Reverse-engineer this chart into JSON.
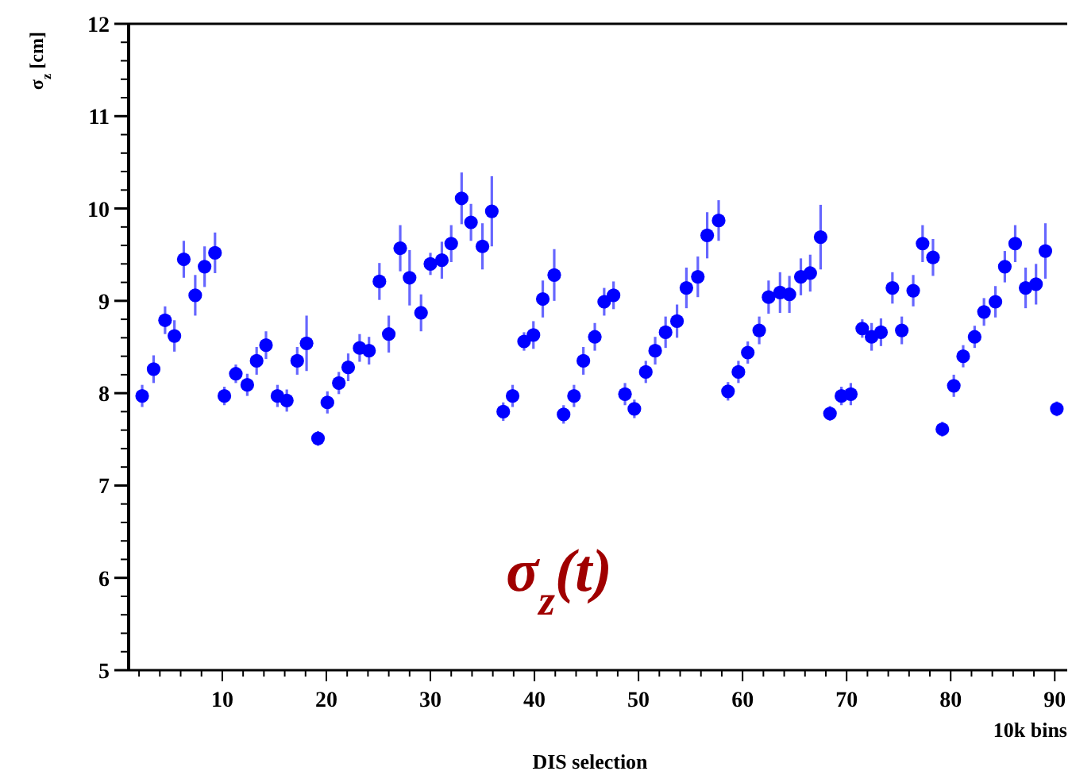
{
  "chart_data": {
    "type": "scatter",
    "xlabel": "DIS selection",
    "ylabel": "σ$_{z}$ [cm]",
    "annotations": [
      "σ$_{z}$(t)",
      "10k bins"
    ],
    "xlim": [
      1,
      91.2
    ],
    "xticks": [
      {
        "value": 2,
        "label": null
      },
      {
        "value": 4,
        "label": null
      },
      {
        "value": 6,
        "label": null
      },
      {
        "value": 8,
        "label": null
      },
      10,
      {
        "value": 12,
        "label": null
      },
      {
        "value": 14,
        "label": null
      },
      {
        "value": 16,
        "label": null
      },
      {
        "value": 18,
        "label": null
      },
      20,
      {
        "value": 22,
        "label": null
      },
      {
        "value": 24,
        "label": null
      },
      {
        "value": 26,
        "label": null
      },
      {
        "value": 28,
        "label": null
      },
      30,
      {
        "value": 32,
        "label": null
      },
      {
        "value": 34,
        "label": null
      },
      {
        "value": 36,
        "label": null
      },
      {
        "value": 38,
        "label": null
      },
      40,
      {
        "value": 42,
        "label": null
      },
      {
        "value": 44,
        "label": null
      },
      {
        "value": 46,
        "label": null
      },
      {
        "value": 48,
        "label": null
      },
      50,
      {
        "value": 52,
        "label": null
      },
      {
        "value": 54,
        "label": null
      },
      {
        "value": 56,
        "label": null
      },
      {
        "value": 58,
        "label": null
      },
      60,
      {
        "value": 62,
        "label": null
      },
      {
        "value": 64,
        "label": null
      },
      {
        "value": 66,
        "label": null
      },
      {
        "value": 68,
        "label": null
      },
      70,
      {
        "value": 72,
        "label": null
      },
      {
        "value": 74,
        "label": null
      },
      {
        "value": 76,
        "label": null
      },
      {
        "value": 78,
        "label": null
      },
      80,
      {
        "value": 82,
        "label": null
      },
      {
        "value": 84,
        "label": null
      },
      {
        "value": 86,
        "label": null
      },
      {
        "value": 88,
        "label": null
      },
      90
    ],
    "ylim": [
      5,
      12
    ],
    "yticks": [
      5,
      {
        "value": 5.2,
        "label": null
      },
      {
        "value": 5.4,
        "label": null
      },
      {
        "value": 5.6,
        "label": null
      },
      {
        "value": 5.8,
        "label": null
      },
      6,
      {
        "value": 6.2,
        "label": null
      },
      {
        "value": 6.4,
        "label": null
      },
      {
        "value": 6.6,
        "label": null
      },
      {
        "value": 6.8,
        "label": null
      },
      7,
      {
        "value": 7.2,
        "label": null
      },
      {
        "value": 7.4,
        "label": null
      },
      {
        "value": 7.6,
        "label": null
      },
      {
        "value": 7.8,
        "label": null
      },
      8,
      {
        "value": 8.2,
        "label": null
      },
      {
        "value": 8.4,
        "label": null
      },
      {
        "value": 8.6,
        "label": null
      },
      {
        "value": 8.8,
        "label": null
      },
      9,
      {
        "value": 9.2,
        "label": null
      },
      {
        "value": 9.4,
        "label": null
      },
      {
        "value": 9.6,
        "label": null
      },
      {
        "value": 9.8,
        "label": null
      },
      10,
      {
        "value": 10.2,
        "label": null
      },
      {
        "value": 10.4,
        "label": null
      },
      {
        "value": 10.6,
        "label": null
      },
      {
        "value": 10.8,
        "label": null
      },
      11,
      {
        "value": 11.2,
        "label": null
      },
      {
        "value": 11.4,
        "label": null
      },
      {
        "value": 11.6,
        "label": null
      },
      {
        "value": 11.8,
        "label": null
      },
      12
    ],
    "marker": "circle",
    "series": [
      {
        "color": "#0000ff",
        "x": [
          2.3,
          3.4,
          4.5,
          5.4,
          6.3,
          7.4,
          8.3,
          9.3,
          10.2,
          11.3,
          12.4,
          13.3,
          14.2,
          15.3,
          16.2,
          17.2,
          18.1,
          19.2,
          20.1,
          21.2,
          22.1,
          23.2,
          24.1,
          25.1,
          26.0,
          27.1,
          28.0,
          29.1,
          30.0,
          31.1,
          32.0,
          33.0,
          33.9,
          35.0,
          35.9,
          37.0,
          37.9,
          39.0,
          39.9,
          40.8,
          41.9,
          42.8,
          43.8,
          44.7,
          45.8,
          46.7,
          47.6,
          48.7,
          49.6,
          50.7,
          51.6,
          52.6,
          53.7,
          54.6,
          55.7,
          56.6,
          57.7,
          58.6,
          59.6,
          60.5,
          61.6,
          62.5,
          63.6,
          64.5,
          65.6,
          66.5,
          67.5,
          68.4,
          69.5,
          70.4,
          71.5,
          72.4,
          73.3,
          74.4,
          75.3,
          76.4,
          77.3,
          78.3,
          79.2,
          80.3,
          81.2,
          82.3,
          83.2,
          84.3,
          85.2,
          86.2,
          87.2,
          88.2,
          89.1,
          90.2
        ],
        "values": [
          7.97,
          8.26,
          8.79,
          8.62,
          9.45,
          9.06,
          9.37,
          9.52,
          7.97,
          8.21,
          8.09,
          8.35,
          8.52,
          7.97,
          7.92,
          8.35,
          8.54,
          7.51,
          7.9,
          8.11,
          8.28,
          8.49,
          8.46,
          9.21,
          8.64,
          9.57,
          9.25,
          8.87,
          9.4,
          9.44,
          9.62,
          10.11,
          9.85,
          9.59,
          9.97,
          7.8,
          7.97,
          8.56,
          8.63,
          9.02,
          9.28,
          7.77,
          7.97,
          8.35,
          8.61,
          8.99,
          9.06,
          7.99,
          7.83,
          8.23,
          8.46,
          8.66,
          8.78,
          9.14,
          9.26,
          9.71,
          9.87,
          8.02,
          8.23,
          8.44,
          8.68,
          9.04,
          9.09,
          9.07,
          9.26,
          9.3,
          9.69,
          7.78,
          7.97,
          7.99,
          8.7,
          8.61,
          8.66,
          9.14,
          8.68,
          9.11,
          9.62,
          9.47,
          7.61,
          8.08,
          8.4,
          8.61,
          8.88,
          8.99,
          9.37,
          9.62,
          9.14,
          9.18,
          9.54,
          7.83
        ],
        "errors": [
          0.12,
          0.15,
          0.15,
          0.17,
          0.2,
          0.22,
          0.22,
          0.22,
          0.1,
          0.1,
          0.12,
          0.15,
          0.15,
          0.12,
          0.12,
          0.15,
          0.3,
          0.08,
          0.12,
          0.12,
          0.15,
          0.15,
          0.15,
          0.2,
          0.2,
          0.25,
          0.3,
          0.2,
          0.12,
          0.2,
          0.2,
          0.28,
          0.2,
          0.25,
          0.38,
          0.1,
          0.12,
          0.1,
          0.15,
          0.2,
          0.28,
          0.1,
          0.12,
          0.15,
          0.15,
          0.15,
          0.15,
          0.12,
          0.1,
          0.12,
          0.15,
          0.17,
          0.18,
          0.22,
          0.22,
          0.25,
          0.22,
          0.1,
          0.12,
          0.12,
          0.15,
          0.18,
          0.22,
          0.2,
          0.2,
          0.2,
          0.35,
          0.08,
          0.1,
          0.12,
          0.1,
          0.15,
          0.15,
          0.17,
          0.15,
          0.17,
          0.2,
          0.2,
          0.08,
          0.12,
          0.12,
          0.12,
          0.15,
          0.17,
          0.17,
          0.2,
          0.22,
          0.22,
          0.3,
          0.08
        ]
      }
    ]
  }
}
